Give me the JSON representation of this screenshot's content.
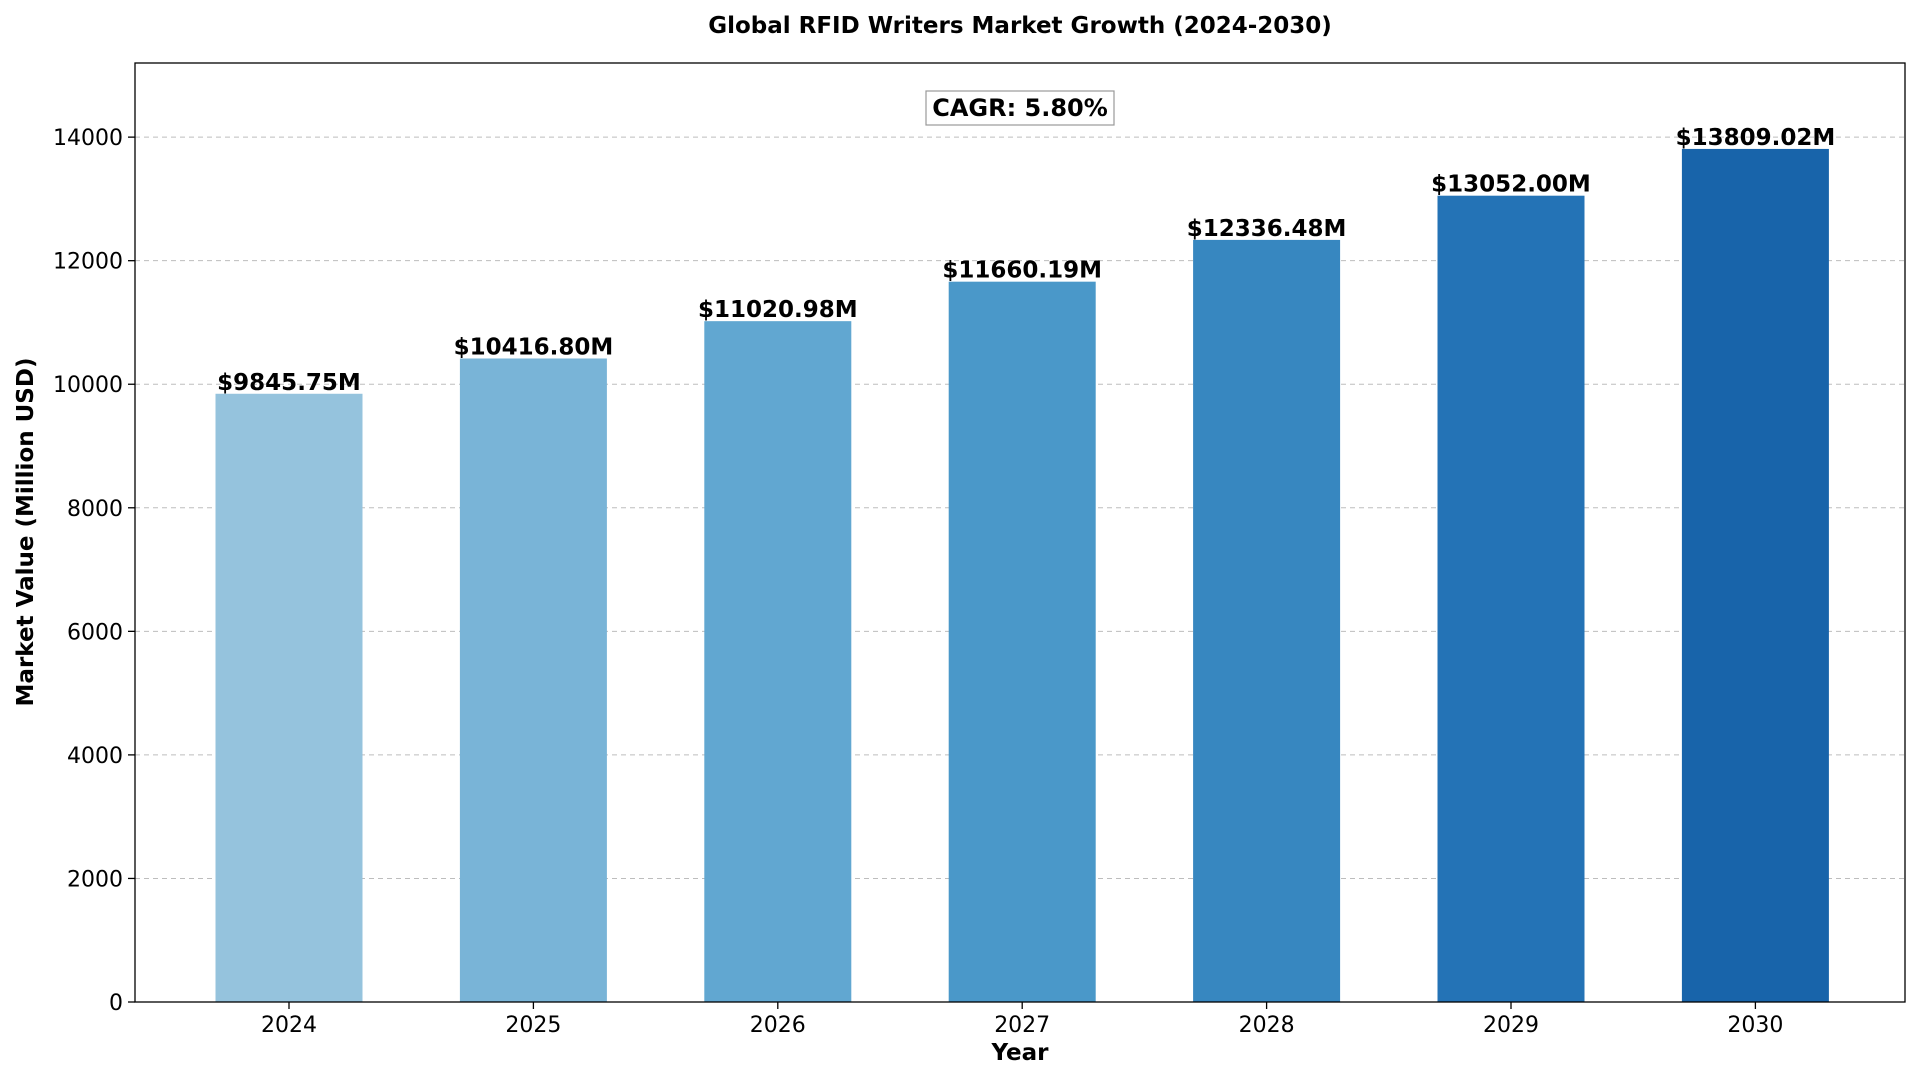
{
  "chart_data": {
    "type": "bar",
    "title": "Global RFID Writers Market Growth (2024-2030)",
    "xlabel": "Year",
    "ylabel": "Market Value (Million USD)",
    "categories": [
      "2024",
      "2025",
      "2026",
      "2027",
      "2028",
      "2029",
      "2030"
    ],
    "values": [
      9845.75,
      10416.8,
      11020.98,
      11660.19,
      12336.48,
      13052.0,
      13809.02
    ],
    "data_labels": [
      "$9845.75M",
      "$10416.80M",
      "$11020.98M",
      "$11660.19M",
      "$12336.48M",
      "$13052.00M",
      "$13809.02M"
    ],
    "ylim": [
      0,
      15200
    ],
    "yticks": [
      0,
      2000,
      4000,
      6000,
      8000,
      10000,
      12000,
      14000
    ],
    "ytick_labels": [
      "0",
      "2000",
      "4000",
      "6000",
      "8000",
      "10000",
      "12000",
      "14000"
    ],
    "grid": "y-dashed",
    "annotation": "CAGR: 5.80%",
    "colors": [
      "#95c3dd",
      "#79b4d7",
      "#61a7d1",
      "#4a98c9",
      "#3787c0",
      "#2473b6",
      "#1864aa"
    ]
  }
}
